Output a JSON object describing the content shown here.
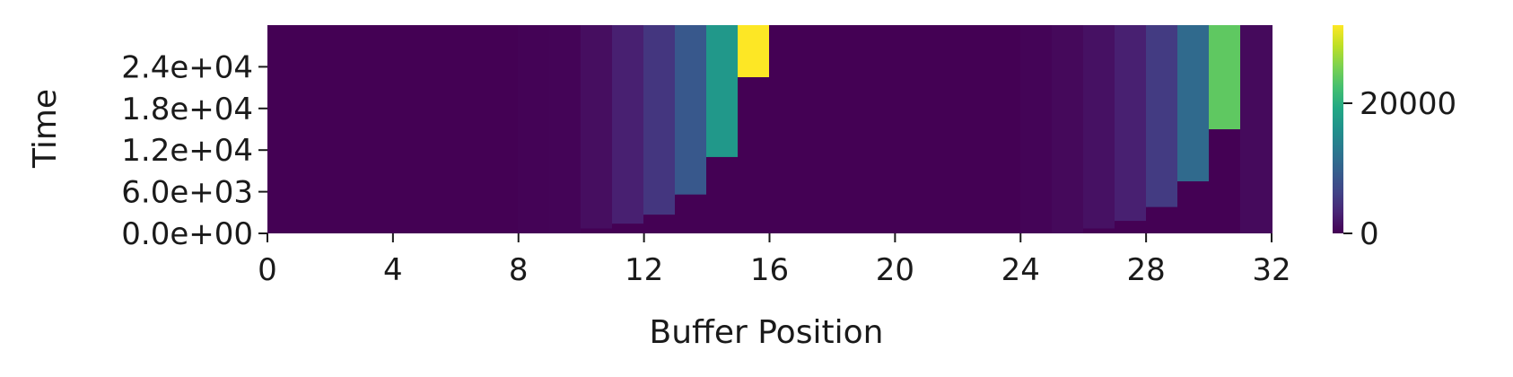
{
  "chart_data": {
    "type": "heatmap",
    "title": "",
    "xlabel": "Buffer Position",
    "ylabel": "Time",
    "x_ticks": [
      "0",
      "4",
      "8",
      "12",
      "16",
      "20",
      "24",
      "28",
      "32"
    ],
    "y_ticks": [
      "0.0e+00",
      "6.0e+03",
      "1.2e+04",
      "1.8e+04",
      "2.4e+04"
    ],
    "x_range": [
      0,
      32
    ],
    "y_range": [
      0,
      30000
    ],
    "colormap": "viridis",
    "colorbar": {
      "range": [
        0,
        32000
      ],
      "ticks": [
        "0",
        "20000"
      ]
    },
    "grid": false,
    "description_of_cells": "Value at each buffer position over time; each column holds a low value until a fill time, then a higher value.",
    "columns": [
      {
        "position": 0,
        "fill_time": 0,
        "low": 0,
        "high": 0
      },
      {
        "position": 1,
        "fill_time": 0,
        "low": 0,
        "high": 0
      },
      {
        "position": 2,
        "fill_time": 0,
        "low": 0,
        "high": 0
      },
      {
        "position": 3,
        "fill_time": 0,
        "low": 0,
        "high": 0
      },
      {
        "position": 4,
        "fill_time": 0,
        "low": 0,
        "high": 0
      },
      {
        "position": 5,
        "fill_time": 0,
        "low": 0,
        "high": 0
      },
      {
        "position": 6,
        "fill_time": 0,
        "low": 0,
        "high": 0
      },
      {
        "position": 7,
        "fill_time": 0,
        "low": 0,
        "high": 0
      },
      {
        "position": 8,
        "fill_time": 0,
        "low": 0,
        "high": 200
      },
      {
        "position": 9,
        "fill_time": 0,
        "low": 0,
        "high": 300
      },
      {
        "position": 10,
        "fill_time": 700,
        "low": 0,
        "high": 1200
      },
      {
        "position": 11,
        "fill_time": 1400,
        "low": 0,
        "high": 2800
      },
      {
        "position": 12,
        "fill_time": 2700,
        "low": 0,
        "high": 5000
      },
      {
        "position": 13,
        "fill_time": 5600,
        "low": 0,
        "high": 8800
      },
      {
        "position": 14,
        "fill_time": 11000,
        "low": 0,
        "high": 17000
      },
      {
        "position": 15,
        "fill_time": 22500,
        "low": 0,
        "high": 32000
      },
      {
        "position": 16,
        "fill_time": 0,
        "low": 0,
        "high": 0
      },
      {
        "position": 17,
        "fill_time": 0,
        "low": 0,
        "high": 0
      },
      {
        "position": 18,
        "fill_time": 0,
        "low": 0,
        "high": 0
      },
      {
        "position": 19,
        "fill_time": 0,
        "low": 0,
        "high": 0
      },
      {
        "position": 20,
        "fill_time": 0,
        "low": 0,
        "high": 0
      },
      {
        "position": 21,
        "fill_time": 0,
        "low": 0,
        "high": 0
      },
      {
        "position": 22,
        "fill_time": 0,
        "low": 0,
        "high": 0
      },
      {
        "position": 23,
        "fill_time": 0,
        "low": 0,
        "high": 0
      },
      {
        "position": 24,
        "fill_time": 0,
        "low": 0,
        "high": 300
      },
      {
        "position": 25,
        "fill_time": 0,
        "low": 0,
        "high": 700
      },
      {
        "position": 26,
        "fill_time": 700,
        "low": 0,
        "high": 1500
      },
      {
        "position": 27,
        "fill_time": 1800,
        "low": 0,
        "high": 2800
      },
      {
        "position": 28,
        "fill_time": 3800,
        "low": 0,
        "high": 5500
      },
      {
        "position": 29,
        "fill_time": 7500,
        "low": 0,
        "high": 11000
      },
      {
        "position": 30,
        "fill_time": 15000,
        "low": 0,
        "high": 24000
      },
      {
        "position": 31,
        "fill_time": 0,
        "low": 0,
        "high": 800
      }
    ]
  }
}
